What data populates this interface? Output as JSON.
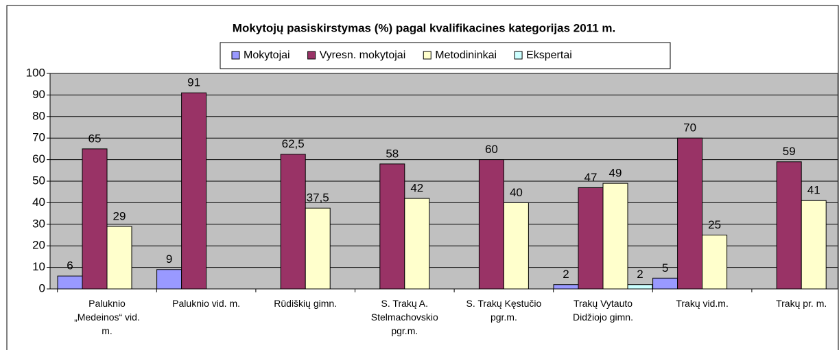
{
  "chart_data": {
    "type": "bar",
    "title": "Mokytojų pasiskirstymas (%) pagal kvalifikacines kategorijas 2011 m.",
    "categories": [
      "Paluknio „Medeinos“ vid. m.",
      "Paluknio vid. m.",
      "Rūdiškių gimn.",
      "S. Trakų A. Stelmachovskio pgr.m.",
      "S. Trakų Kęstučio pgr.m.",
      "Trakų Vytauto Didžiojo gimn.",
      "Trakų vid.m.",
      "Trakų pr. m."
    ],
    "series": [
      {
        "name": "Mokytojai",
        "color": "#9999ff",
        "values": [
          6,
          9,
          null,
          null,
          null,
          2,
          5,
          null
        ]
      },
      {
        "name": "Vyresn. mokytojai",
        "color": "#993366",
        "values": [
          65,
          91,
          62.5,
          58,
          60,
          47,
          70,
          59
        ],
        "value_labels": [
          "65",
          "91",
          "62,5",
          "58",
          "60",
          "47",
          "70",
          "59"
        ]
      },
      {
        "name": "Metodininkai",
        "color": "#ffffcc",
        "values": [
          29,
          null,
          37.5,
          42,
          40,
          49,
          25,
          41
        ],
        "value_labels": [
          "29",
          null,
          "37,5",
          "42",
          "40",
          "49",
          "25",
          "41"
        ]
      },
      {
        "name": "Ekspertai",
        "color": "#ccffff",
        "values": [
          null,
          null,
          null,
          null,
          null,
          2,
          null,
          null
        ]
      }
    ],
    "ylim": [
      0,
      100
    ],
    "yticks": [
      0,
      10,
      20,
      30,
      40,
      50,
      60,
      70,
      80,
      90,
      100
    ],
    "grid": true,
    "legend": "top"
  }
}
